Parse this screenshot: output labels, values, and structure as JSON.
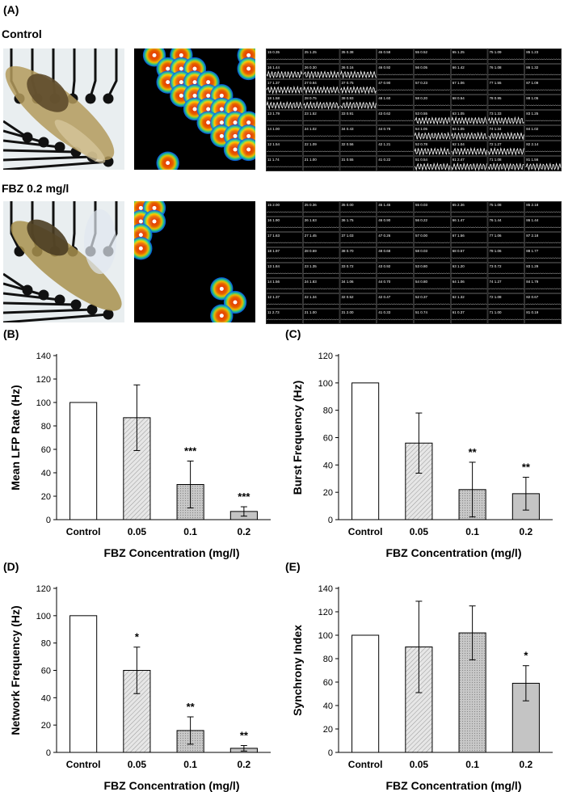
{
  "panel_a": {
    "letter": "(A)",
    "rows": [
      {
        "label": "Control",
        "active_electrodes": [
          [
            1,
            0
          ],
          [
            3,
            0
          ],
          [
            2,
            1
          ],
          [
            3,
            1
          ],
          [
            4,
            1
          ],
          [
            2,
            2
          ],
          [
            3,
            2
          ],
          [
            4,
            2
          ],
          [
            5,
            2
          ],
          [
            3,
            3
          ],
          [
            4,
            3
          ],
          [
            5,
            3
          ],
          [
            6,
            3
          ],
          [
            4,
            4
          ],
          [
            5,
            4
          ],
          [
            6,
            4
          ],
          [
            7,
            4
          ],
          [
            5,
            5
          ],
          [
            6,
            5
          ],
          [
            7,
            5
          ],
          [
            8,
            5
          ],
          [
            6,
            6
          ],
          [
            7,
            6
          ],
          [
            8,
            6
          ],
          [
            7,
            7
          ],
          [
            8,
            7
          ],
          [
            2,
            8
          ],
          [
            8,
            0
          ],
          [
            8,
            1
          ]
        ],
        "trace_labels": [
          [
            "15 0.35",
            "25 1.25",
            "35 0.38",
            "45 0.58",
            "55 0.52",
            "65 1.25",
            "75 1.09",
            "85 1.23"
          ],
          [
            "16 1.44",
            "26 0.30",
            "36 0.16",
            "46 0.92",
            "56 0.05",
            "66 1.42",
            "76 1.08",
            "86 1.32"
          ],
          [
            "17 1.37",
            "27 0.94",
            "37 0.75",
            "47 0.90",
            "57 0.23",
            "67 1.06",
            "77 1.55",
            "87 1.09"
          ],
          [
            "18 1.58",
            "28 0.75",
            "38 0.93",
            "48 1.60",
            "58 0.20",
            "68 0.54",
            "78 0.95",
            "88 1.05"
          ],
          [
            "13 1.79",
            "23 1.52",
            "33 0.91",
            "43 0.62",
            "53 0.55",
            "63 1.05",
            "73 1.33",
            "83 1.25"
          ],
          [
            "14 1.00",
            "24 1.02",
            "34 0.43",
            "44 0.78",
            "54 1.05",
            "64 1.05",
            "74 1.34",
            "84 1.02"
          ],
          [
            "12 1.54",
            "22 1.09",
            "32 0.56",
            "42 1.21",
            "52 0.78",
            "62 1.04",
            "72 1.27",
            "82 2.14"
          ],
          [
            "11 1.74",
            "21 1.00",
            "31 0.55",
            "41 0.22",
            "51 0.54",
            "61 2.47",
            "71 1.08",
            "81 1.56"
          ]
        ]
      },
      {
        "label": "FBZ 0.2 mg/l",
        "active_electrodes": [
          [
            0,
            0
          ],
          [
            1,
            0
          ],
          [
            0,
            1
          ],
          [
            1,
            1
          ],
          [
            0,
            2
          ],
          [
            0,
            3
          ],
          [
            6,
            6
          ],
          [
            7,
            7
          ],
          [
            6,
            8
          ]
        ],
        "trace_labels": [
          [
            "15 2.00",
            "25 0.36",
            "35 0.00",
            "45 1.45",
            "55 0.03",
            "65 2.36",
            "75 1.08",
            "85 2.18"
          ],
          [
            "16 1.90",
            "26 1.63",
            "36 1.75",
            "46 0.90",
            "56 0.22",
            "66 1.47",
            "76 1.44",
            "86 1.44"
          ],
          [
            "17 1.63",
            "27 1.45",
            "37 1.03",
            "47 0.26",
            "57 0.00",
            "67 1.56",
            "77 1.06",
            "87 2.18"
          ],
          [
            "18 1.97",
            "28 0.69",
            "38 0.70",
            "48 0.68",
            "58 0.03",
            "68 0.57",
            "78 1.06",
            "88 1.77"
          ],
          [
            "13 1.84",
            "23 1.35",
            "33 0.72",
            "43 0.92",
            "53 0.80",
            "63 1.20",
            "73 0.72",
            "83 1.29"
          ],
          [
            "14 1.56",
            "24 1.83",
            "34 1.06",
            "44 0.70",
            "54 0.80",
            "64 1.06",
            "74 1.27",
            "84 1.79"
          ],
          [
            "12 1.37",
            "22 1.34",
            "32 0.52",
            "42 0.47",
            "52 0.37",
            "62 1.32",
            "72 1.08",
            "82 0.67"
          ],
          [
            "11 2.73",
            "21 1.00",
            "31 2.00",
            "41 0.33",
            "51 0.74",
            "61 0.37",
            "71 1.00",
            "81 0.19"
          ]
        ]
      }
    ]
  },
  "chart_data": [
    {
      "letter": "(B)",
      "type": "bar",
      "categories": [
        "Control",
        "0.05",
        "0.1",
        "0.2"
      ],
      "values": [
        100,
        87,
        30,
        7
      ],
      "errors": [
        0,
        28,
        20,
        4
      ],
      "significance": [
        "",
        "",
        "***",
        "***"
      ],
      "fills": [
        "#ffffff",
        "#dcdcdc",
        "#bdbdbd",
        "#c4c4c4"
      ],
      "ylim": [
        0,
        140
      ],
      "yticks": [
        0,
        20,
        40,
        60,
        80,
        100,
        120,
        140
      ],
      "xlabel": "FBZ Concentration (mg/l)",
      "ylabel": "Mean LFP Rate (Hz)"
    },
    {
      "letter": "(C)",
      "type": "bar",
      "categories": [
        "Control",
        "0.05",
        "0.1",
        "0.2"
      ],
      "values": [
        100,
        56,
        22,
        19
      ],
      "errors": [
        0,
        22,
        20,
        12
      ],
      "significance": [
        "",
        "",
        "**",
        "**"
      ],
      "fills": [
        "#ffffff",
        "#dcdcdc",
        "#bdbdbd",
        "#c4c4c4"
      ],
      "ylim": [
        0,
        120
      ],
      "yticks": [
        0,
        20,
        40,
        60,
        80,
        100,
        120
      ],
      "xlabel": "FBZ Concentration (mg/l)",
      "ylabel": "Burst Frequency (Hz)"
    },
    {
      "letter": "(D)",
      "type": "bar",
      "categories": [
        "Control",
        "0.05",
        "0.1",
        "0.2"
      ],
      "values": [
        100,
        60,
        16,
        3
      ],
      "errors": [
        0,
        17,
        10,
        2
      ],
      "significance": [
        "",
        "*",
        "**",
        "**"
      ],
      "fills": [
        "#ffffff",
        "#dcdcdc",
        "#bdbdbd",
        "#c4c4c4"
      ],
      "ylim": [
        0,
        120
      ],
      "yticks": [
        0,
        20,
        40,
        60,
        80,
        100,
        120
      ],
      "xlabel": "FBZ Concentration (mg/l)",
      "ylabel": "Network Frequency (Hz)"
    },
    {
      "letter": "(E)",
      "type": "bar",
      "categories": [
        "Control",
        "0.05",
        "0.1",
        "0.2"
      ],
      "values": [
        100,
        90,
        102,
        59
      ],
      "errors": [
        0,
        39,
        23,
        15
      ],
      "significance": [
        "",
        "",
        "",
        "*"
      ],
      "fills": [
        "#ffffff",
        "#dcdcdc",
        "#cfcfcf",
        "#c4c4c4"
      ],
      "ylim": [
        0,
        140
      ],
      "yticks": [
        0,
        20,
        40,
        60,
        80,
        100,
        120,
        140
      ],
      "xlabel": "FBZ Concentration (mg/l)",
      "ylabel": "Synchrony Index"
    }
  ]
}
